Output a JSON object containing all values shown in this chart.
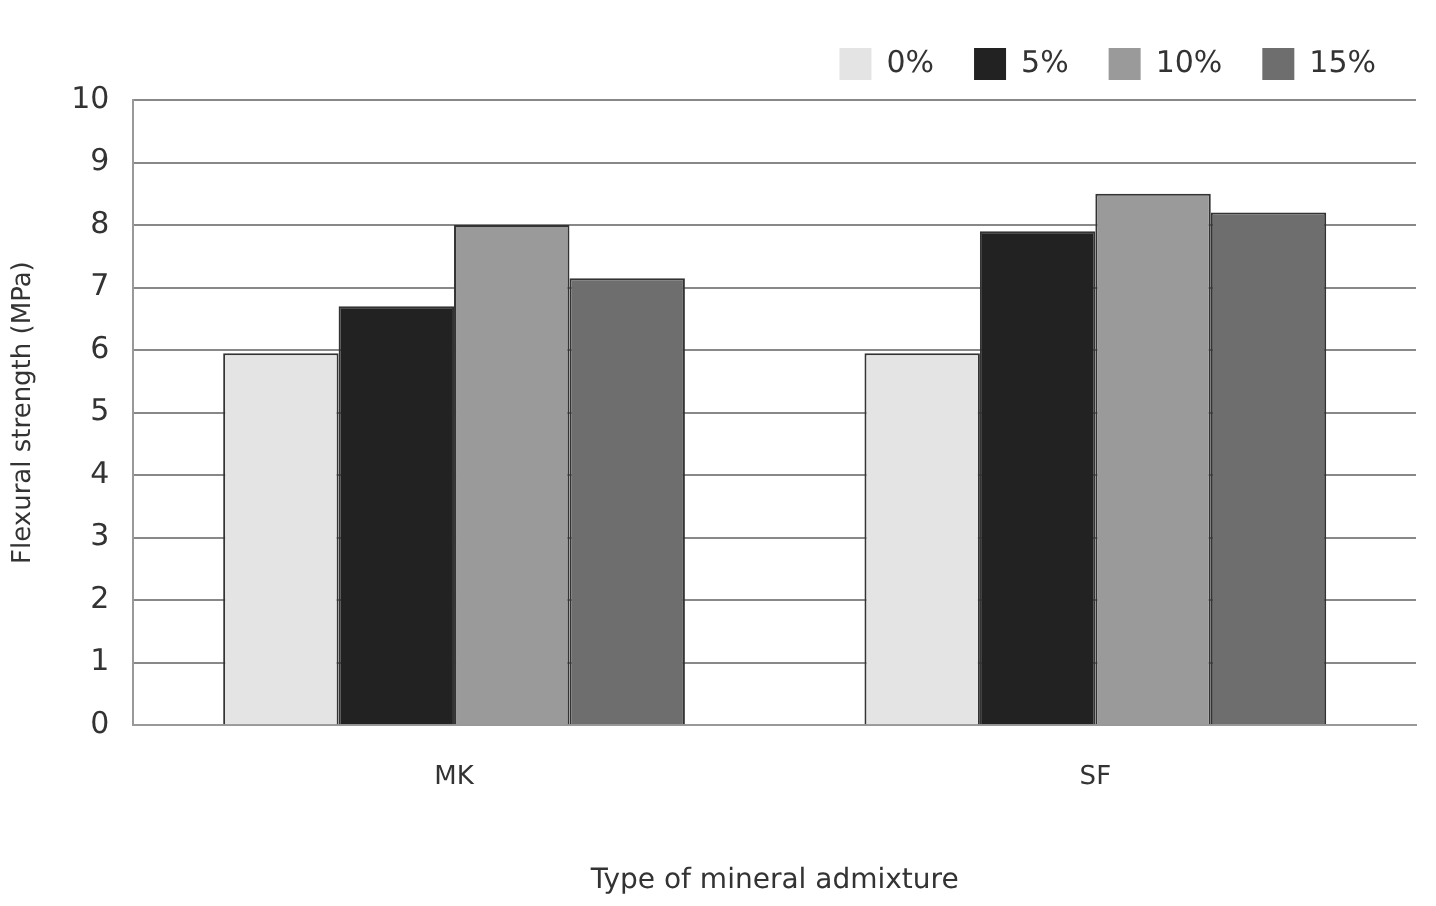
{
  "chart_data": {
    "type": "bar",
    "xlabel": "Type of mineral admixture",
    "ylabel": "Flexural strength (MPa)",
    "categories": [
      "MK",
      "SF"
    ],
    "series": [
      {
        "name": "0%",
        "color": "#e4e4e4",
        "values": [
          5.95,
          5.95
        ]
      },
      {
        "name": "5%",
        "color": "#222222",
        "values": [
          6.7,
          7.9
        ]
      },
      {
        "name": "10%",
        "color": "#9a9a9a",
        "values": [
          8.0,
          8.5
        ]
      },
      {
        "name": "15%",
        "color": "#6e6e6e",
        "values": [
          7.15,
          8.2
        ]
      }
    ],
    "ylim": [
      0,
      10
    ],
    "yticks": [
      0,
      1,
      2,
      3,
      4,
      5,
      6,
      7,
      8,
      9,
      10
    ],
    "grid": "y",
    "legend": "top right"
  }
}
